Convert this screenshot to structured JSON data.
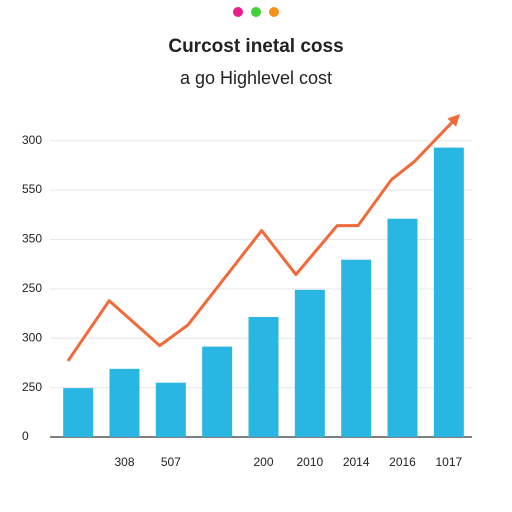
{
  "chart_data": {
    "type": "bar",
    "title": "Curcost inetal coss",
    "subtitle": "a go Highlevel cost",
    "categories": [
      null,
      "308",
      "507",
      null,
      "200",
      "2010",
      "2014",
      "2016",
      "1017"
    ],
    "series": [
      {
        "type": "bar",
        "color": "#29b6e3",
        "values": [
          0.99,
          1.38,
          1.1,
          1.83,
          2.43,
          2.98,
          3.59,
          4.42,
          5.86
        ]
      },
      {
        "type": "line",
        "color": "#f06a3a",
        "x": [
          -0.22,
          0.67,
          1.76,
          2.37,
          3.96,
          4.7,
          5.59,
          6.04,
          6.76,
          7.26,
          8.17
        ],
        "values": [
          1.54,
          2.76,
          1.85,
          2.27,
          4.18,
          3.29,
          4.28,
          4.28,
          5.21,
          5.58,
          6.47
        ]
      }
    ],
    "ylim": [
      0,
      6.5
    ],
    "yticks": [
      0,
      {
        "value": 1,
        "label": "250"
      },
      {
        "value": 2,
        "label": "300"
      },
      {
        "value": 3,
        "label": "250"
      },
      {
        "value": 4,
        "label": "350"
      },
      {
        "value": 5,
        "label": "550"
      },
      {
        "value": 6,
        "label": "300"
      }
    ],
    "grid": true
  }
}
